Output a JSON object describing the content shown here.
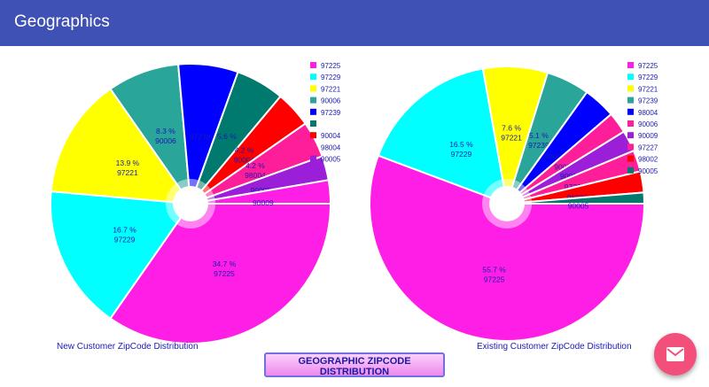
{
  "appbar": {
    "title": "Geographics"
  },
  "buttons": {
    "geo_label": "GEOGRAPHIC ZIPCODE DISTRIBUTION"
  },
  "fab": {
    "icon": "mail-icon",
    "color": "#f2507a"
  },
  "colors": {
    "97225": "#ff1ee6",
    "97229": "#00ffff",
    "97221": "#ffff00",
    "90006": "#2aa59a",
    "97239": "#0000ff",
    "98004": "#0000ff",
    "90004": "#007a6f",
    "98002": "#ff0000",
    "90009": "#ff1e9a",
    "97227": "#ff1e9a",
    "90005": "#9b1ed8"
  },
  "chart_data": [
    {
      "type": "pie",
      "title": "",
      "caption": "New Customer ZipCode Distribution",
      "legend": [
        "97225",
        "97229",
        "97221",
        "90006",
        "97239",
        "",
        "90004",
        "98004",
        "90005"
      ],
      "legend_colors": [
        "#ff1ee6",
        "#00ffff",
        "#ffff00",
        "#2aa59a",
        "#0000ff",
        "#007a6f",
        "#ff0000",
        "#ff1e9a",
        "#9b1ed8"
      ],
      "slices": [
        {
          "label": "97225",
          "value": 34.7,
          "color": "#ff1ee6",
          "text": "34.7 %"
        },
        {
          "label": "97229",
          "value": 16.7,
          "color": "#00ffff",
          "text": "16.7 %"
        },
        {
          "label": "97221",
          "value": 13.9,
          "color": "#ffff00",
          "text": "13.9 %"
        },
        {
          "label": "90006",
          "value": 8.3,
          "color": "#2aa59a",
          "text": "8.3 %"
        },
        {
          "label": "97239",
          "value": 6.9,
          "color": "#0000ff",
          "text": ""
        },
        {
          "label": "",
          "value": 5.6,
          "color": "#007a6f",
          "text": "5.6 %"
        },
        {
          "label": "90004",
          "value": 4.2,
          "color": "#ff0000",
          "text": "4.2 %"
        },
        {
          "label": "98004",
          "value": 4.2,
          "color": "#ff1e9a",
          "text": "4.2 %"
        },
        {
          "label": "90005",
          "value": 2.8,
          "color": "#9b1ed8",
          "text": ""
        },
        {
          "label": "90009",
          "value": 2.7,
          "color": "#ff1ee6",
          "text": ""
        }
      ]
    },
    {
      "type": "pie",
      "title": "",
      "caption": "Existing Customer ZipCode Distribution",
      "legend": [
        "97225",
        "97229",
        "97221",
        "97239",
        "98004",
        "90006",
        "90009",
        "97227",
        "98002",
        "90005"
      ],
      "legend_colors": [
        "#ff1ee6",
        "#00ffff",
        "#ffff00",
        "#2aa59a",
        "#0000ff",
        "#ff1e9a",
        "#9b1ed8",
        "#ff1e9a",
        "#ff0000",
        "#007a6f"
      ],
      "slices": [
        {
          "label": "97225",
          "value": 55.7,
          "color": "#ff1ee6",
          "text": "55.7 %"
        },
        {
          "label": "97229",
          "value": 16.5,
          "color": "#00ffff",
          "text": "16.5 %"
        },
        {
          "label": "97221",
          "value": 7.6,
          "color": "#ffff00",
          "text": "7.6 %"
        },
        {
          "label": "97239",
          "value": 5.1,
          "color": "#2aa59a",
          "text": "5.1 %"
        },
        {
          "label": "98004",
          "value": 3.8,
          "color": "#0000ff",
          "text": ""
        },
        {
          "label": "90006",
          "value": 2.5,
          "color": "#ff1e9a",
          "text": ""
        },
        {
          "label": "90009",
          "value": 2.5,
          "color": "#9b1ed8",
          "text": ""
        },
        {
          "label": "97227",
          "value": 2.5,
          "color": "#ff1e9a",
          "text": ""
        },
        {
          "label": "98002",
          "value": 2.5,
          "color": "#ff0000",
          "text": ""
        },
        {
          "label": "90005",
          "value": 1.3,
          "color": "#007a6f",
          "text": ""
        }
      ]
    }
  ]
}
